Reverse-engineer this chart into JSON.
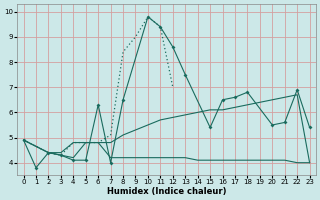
{
  "xlabel": "Humidex (Indice chaleur)",
  "bg_color": "#cce8e8",
  "grid_color": "#d4a0a0",
  "line_color": "#1a6b5e",
  "xlim": [
    -0.5,
    23.5
  ],
  "ylim": [
    3.5,
    10.3
  ],
  "xticks": [
    0,
    1,
    2,
    3,
    4,
    5,
    6,
    7,
    8,
    9,
    10,
    11,
    12,
    13,
    14,
    15,
    16,
    17,
    18,
    19,
    20,
    21,
    22,
    23
  ],
  "yticks": [
    4,
    5,
    6,
    7,
    8,
    9,
    10
  ],
  "series": [
    {
      "x": [
        0,
        1,
        2,
        3,
        4,
        5,
        6,
        7,
        8,
        10,
        11,
        12,
        13,
        15,
        16,
        17,
        18,
        20,
        21,
        22,
        23
      ],
      "y": [
        4.9,
        3.8,
        4.4,
        4.3,
        4.1,
        4.1,
        6.3,
        4.0,
        6.5,
        9.8,
        9.4,
        8.6,
        7.5,
        5.4,
        6.5,
        6.6,
        6.8,
        5.5,
        5.6,
        6.9,
        5.4
      ],
      "style": "-",
      "marker": "D",
      "markersize": 2.0
    },
    {
      "x": [
        0,
        2,
        3,
        4,
        5,
        6,
        7,
        8,
        9,
        10,
        11,
        12
      ],
      "y": [
        4.9,
        4.4,
        4.3,
        4.8,
        4.8,
        4.8,
        5.1,
        8.4,
        9.0,
        9.8,
        9.4,
        7.0
      ],
      "style": ":",
      "marker": null,
      "markersize": 0
    },
    {
      "x": [
        0,
        2,
        3,
        4,
        5,
        6,
        7,
        8,
        9,
        10,
        11,
        12,
        13,
        14,
        15,
        16,
        17,
        18,
        19,
        20,
        21,
        22,
        23
      ],
      "y": [
        4.9,
        4.4,
        4.3,
        4.2,
        4.8,
        4.8,
        4.2,
        4.2,
        4.2,
        4.2,
        4.2,
        4.2,
        4.2,
        4.1,
        4.1,
        4.1,
        4.1,
        4.1,
        4.1,
        4.1,
        4.1,
        4.0,
        4.0
      ],
      "style": "-",
      "marker": null,
      "markersize": 0
    },
    {
      "x": [
        0,
        2,
        3,
        4,
        5,
        6,
        7,
        8,
        9,
        10,
        11,
        12,
        13,
        14,
        15,
        16,
        17,
        18,
        19,
        20,
        21,
        22,
        23
      ],
      "y": [
        4.9,
        4.4,
        4.4,
        4.8,
        4.8,
        4.8,
        4.8,
        5.1,
        5.3,
        5.5,
        5.7,
        5.8,
        5.9,
        6.0,
        6.1,
        6.1,
        6.2,
        6.3,
        6.4,
        6.5,
        6.6,
        6.7,
        4.0
      ],
      "style": "-",
      "marker": null,
      "markersize": 0
    }
  ]
}
